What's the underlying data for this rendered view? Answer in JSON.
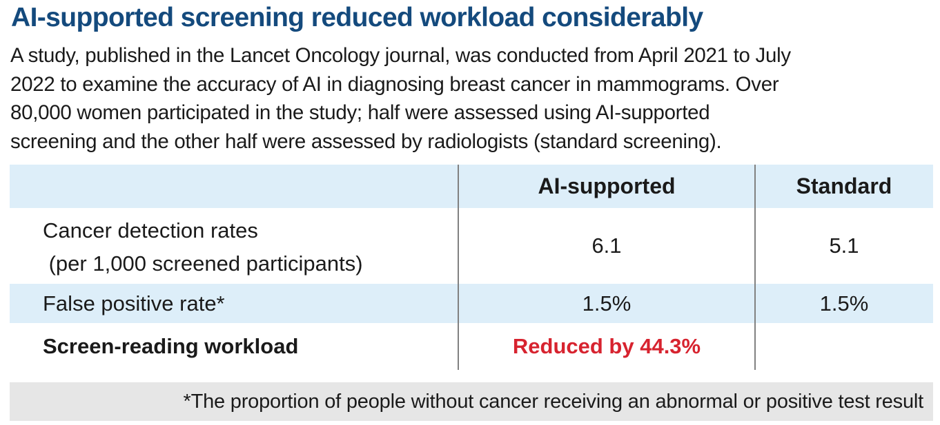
{
  "title": "AI-supported screening reduced workload considerably",
  "intro": {
    "lines": [
      "A study, published in the Lancet Oncology journal, was conducted from April 2021 to July",
      "2022 to examine the accuracy of AI in diagnosing breast cancer in mammograms. Over",
      "80,000 women participated in the study; half were assessed using AI-supported",
      "screening and the other half were assessed by radiologists (standard screening)."
    ]
  },
  "table": {
    "headers": [
      "",
      "AI-supported",
      "Standard"
    ],
    "rows": [
      {
        "label_line1": "Cancer detection rates",
        "label_line2": " (per 1,000 screened participants)",
        "ai": "6.1",
        "standard": "5.1"
      },
      {
        "label": "False positive rate*",
        "ai": "1.5%",
        "standard": "1.5%"
      },
      {
        "label": "Screen-reading workload",
        "ai": "Reduced by 44.3%",
        "standard": ""
      }
    ]
  },
  "footnote": "*The proportion of people without cancer receiving an abnormal or positive test result",
  "colors": {
    "title": "#144a7d",
    "shaded_row": "#ddeef9",
    "highlight": "#d7232f",
    "footnote_bg": "#e6e6e6",
    "divider": "#808080"
  }
}
